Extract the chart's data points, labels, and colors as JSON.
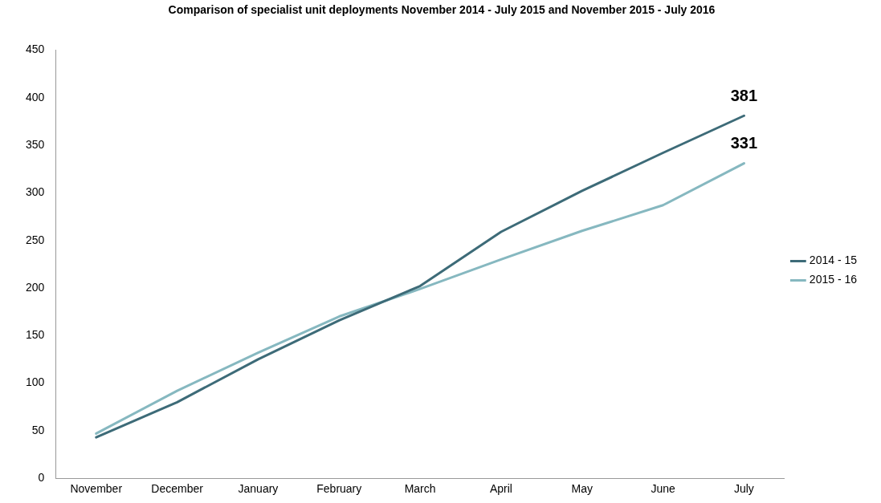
{
  "chart_data": {
    "type": "line",
    "title": "Comparison of specialist unit deployments November 2014 - July 2015 and November 2015 - July 2016",
    "categories": [
      "November",
      "December",
      "January",
      "February",
      "March",
      "April",
      "May",
      "June",
      "July"
    ],
    "series": [
      {
        "name": "2014 - 15",
        "color": "#3d6b78",
        "values": [
          43,
          80,
          125,
          166,
          202,
          259,
          302,
          342,
          381
        ],
        "value_labels": [
          null,
          null,
          null,
          null,
          null,
          null,
          null,
          null,
          "381"
        ]
      },
      {
        "name": "2015 - 16",
        "color": "#86b8c0",
        "values": [
          47,
          92,
          132,
          170,
          199,
          230,
          260,
          287,
          331
        ],
        "value_labels": [
          null,
          null,
          null,
          null,
          null,
          null,
          null,
          null,
          "331"
        ]
      }
    ],
    "ylim": [
      0,
      450
    ],
    "yticks": [
      0,
      50,
      100,
      150,
      200,
      250,
      300,
      350,
      400,
      450
    ],
    "legend": "right",
    "grid": false,
    "marker": "none",
    "line_style": "solid"
  }
}
